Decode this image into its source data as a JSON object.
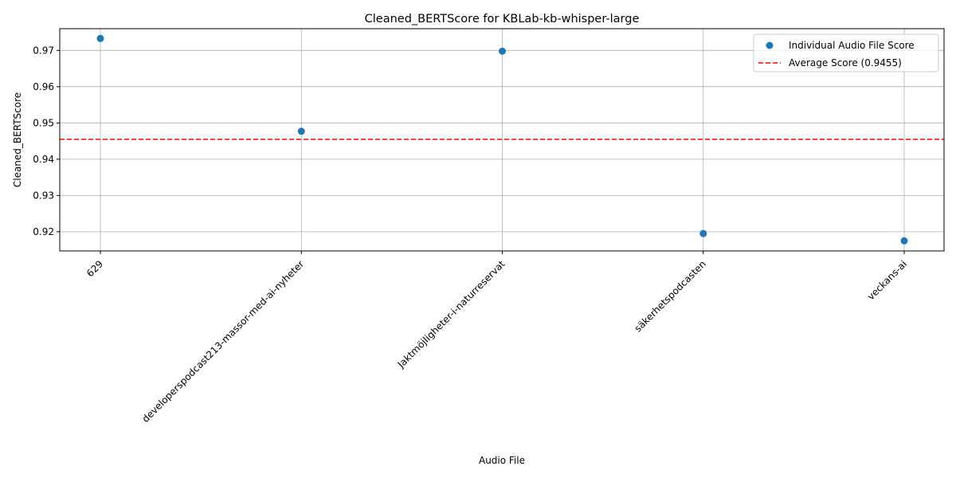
{
  "chart_data": {
    "type": "scatter",
    "title": "Cleaned_BERTScore for KBLab-kb-whisper-large",
    "xlabel": "Audio File",
    "ylabel": "Cleaned_BERTScore",
    "categories": [
      "629",
      "developerspodcast213-massor-med-ai-nyheter",
      "Jaktmöjligheter-i-naturreservat",
      "säkerhetspodcasten",
      "veckans-ai"
    ],
    "series": [
      {
        "name": "Individual Audio File Score",
        "values": [
          0.9733,
          0.9477,
          0.9698,
          0.9195,
          0.9175
        ],
        "color": "#1f77b4"
      }
    ],
    "average": {
      "label": "Average Score (0.9455)",
      "value": 0.9455,
      "color": "#ff0000"
    },
    "ylim": [
      0.9147,
      0.976
    ],
    "yticks": [
      0.92,
      0.93,
      0.94,
      0.95,
      0.96,
      0.97
    ],
    "ytick_labels": [
      "0.92",
      "0.93",
      "0.94",
      "0.95",
      "0.96",
      "0.97"
    ],
    "grid": true,
    "legend_position": "top-right"
  }
}
